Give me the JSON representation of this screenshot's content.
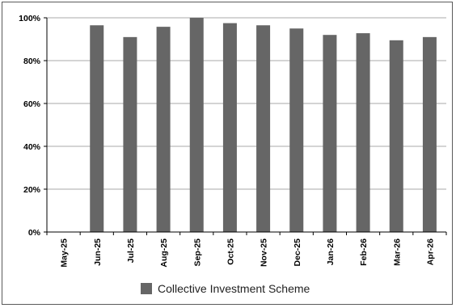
{
  "chart_data": {
    "type": "bar",
    "categories": [
      "May-25",
      "Jun-25",
      "Jul-25",
      "Aug-25",
      "Sep-25",
      "Oct-25",
      "Nov-25",
      "Dec-25",
      "Jan-26",
      "Feb-26",
      "Mar-26",
      "Apr-26"
    ],
    "series": [
      {
        "name": "Collective Investment Scheme",
        "values": [
          0,
          96.5,
          91,
          95.8,
          100,
          97.5,
          96.5,
          95,
          92,
          92.8,
          89.5,
          91
        ],
        "color": "#666666"
      }
    ],
    "yticks": [
      "0%",
      "20%",
      "40%",
      "60%",
      "80%",
      "100%"
    ],
    "ylim": [
      0,
      100
    ],
    "y_unit": "percent",
    "grid": true,
    "legend_position": "bottom"
  }
}
